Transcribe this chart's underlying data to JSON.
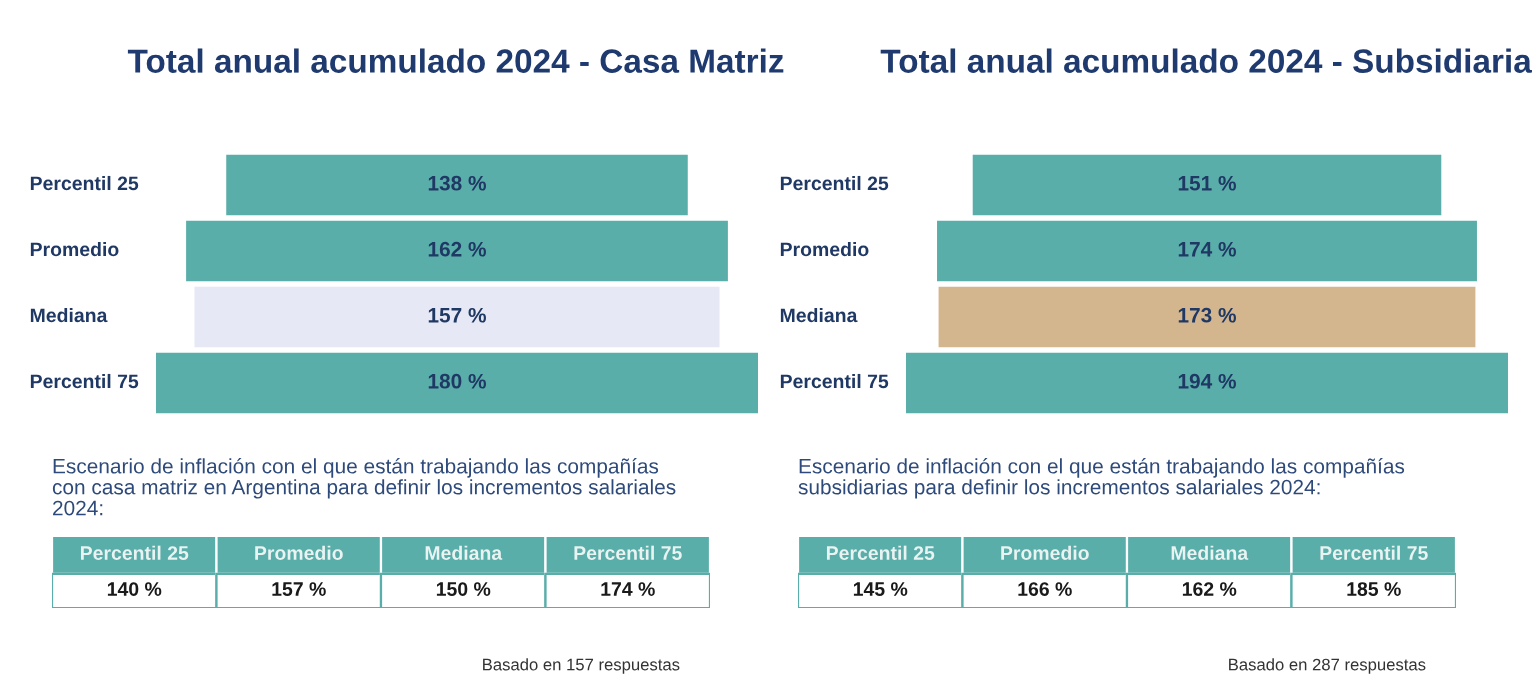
{
  "chart_data": [
    {
      "type": "other",
      "title": "Total anual acumulado 2024 - Casa Matriz",
      "categories": [
        "Percentil 25",
        "Promedio",
        "Mediana",
        "Percentil 75"
      ],
      "values": [
        138,
        162,
        157,
        180
      ],
      "value_labels": [
        "138 %",
        "162 %",
        "157 %",
        "180 %"
      ],
      "colors": [
        "#5aaeaa",
        "#5aaeaa",
        "#e6e8f6",
        "#5aaeaa"
      ]
    },
    {
      "type": "other",
      "title": "Escenario de inflación con el que están trabajando las compañías con casa matriz en Argentina para definir los incrementos salariales 2024:",
      "categories": [
        "Percentil 25",
        "Promedio",
        "Mediana",
        "Percentil 75"
      ],
      "value_labels": [
        "140 %",
        "157 %",
        "150 %",
        "174 %"
      ],
      "color": "#5aaeaa",
      "annotations": [
        "Basado en 157 respuestas"
      ]
    },
    {
      "type": "other",
      "title": "Total anual acumulado 2024 - Subsidiaria",
      "categories": [
        "Percentil 25",
        "Promedio",
        "Mediana",
        "Percentil 75"
      ],
      "values": [
        151,
        174,
        173,
        194
      ],
      "value_labels": [
        "151 %",
        "174 %",
        "173 %",
        "194 %"
      ],
      "colors": [
        "#5aaeaa",
        "#5aaeaa",
        "#d4b68e",
        "#5aaeaa"
      ]
    },
    {
      "type": "other",
      "title": "Escenario de inflación con el que están trabajando las compañías subsidiarias para definir los incrementos salariales 2024:",
      "categories": [
        "Percentil 25",
        "Promedio",
        "Mediana",
        "Percentil 75"
      ],
      "value_labels": [
        "145 %",
        "166 %",
        "162 %",
        "185 %"
      ],
      "color": "#5aaeaa",
      "annotations": [
        "Basado en 287 respuestas"
      ]
    }
  ]
}
